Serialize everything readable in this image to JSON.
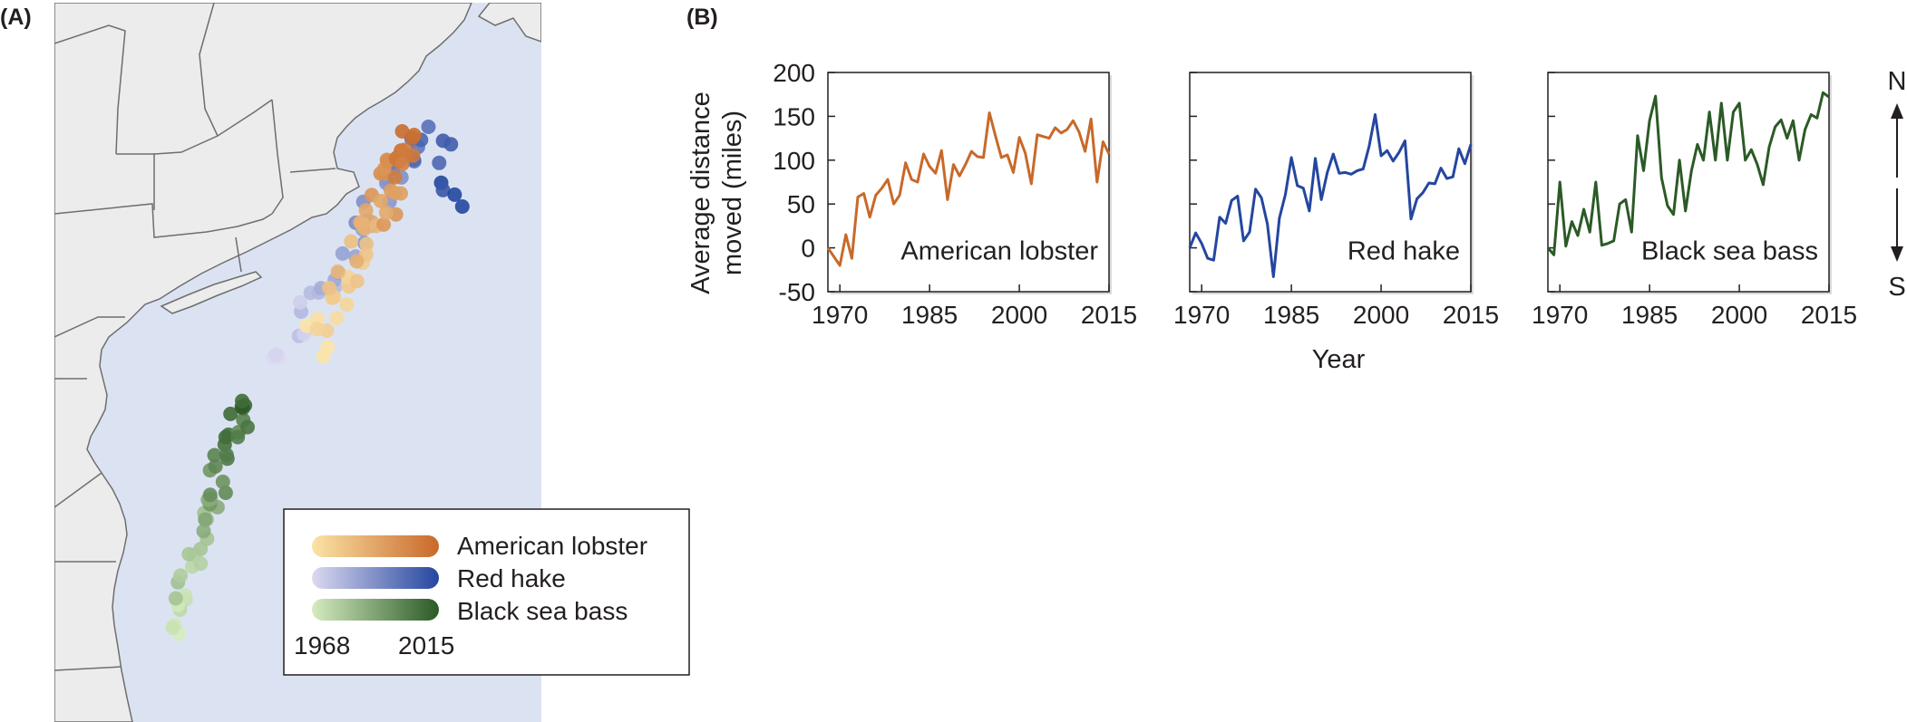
{
  "panel_a": {
    "label": "(A)",
    "legend": {
      "items": [
        {
          "name": "American lobster",
          "from": "#fbe3a6",
          "to": "#c8692a"
        },
        {
          "name": "Red hake",
          "from": "#dcd9f0",
          "to": "#2446a0"
        },
        {
          "name": "Black sea bass",
          "from": "#d4ecbf",
          "to": "#2b5a26"
        }
      ],
      "year_start": "1968",
      "year_end": "2015"
    },
    "colors": {
      "ocean": "#dbe3f3",
      "land": "#ececec",
      "border": "#6e6e6e"
    }
  },
  "panel_b": {
    "label": "(B)",
    "ylabel_line1": "Average distance",
    "ylabel_line2": "moved (miles)",
    "xlabel": "Year",
    "compass_n": "N",
    "compass_s": "S"
  },
  "chart_data": [
    {
      "type": "line",
      "title": "American lobster",
      "color": "#c8692a",
      "xlim": [
        1968,
        2015
      ],
      "ylim": [
        -50,
        200
      ],
      "xticks": [
        1970,
        1985,
        2000,
        2015
      ],
      "yticks": [
        -50,
        0,
        50,
        100,
        150,
        200
      ],
      "x": [
        1968,
        1969,
        1970,
        1971,
        1972,
        1973,
        1974,
        1975,
        1976,
        1977,
        1978,
        1979,
        1980,
        1981,
        1982,
        1983,
        1984,
        1985,
        1986,
        1987,
        1988,
        1989,
        1990,
        1991,
        1992,
        1993,
        1994,
        1995,
        1996,
        1997,
        1998,
        1999,
        2000,
        2001,
        2002,
        2003,
        2004,
        2005,
        2006,
        2007,
        2008,
        2009,
        2010,
        2011,
        2012,
        2013,
        2014,
        2015
      ],
      "y": [
        0,
        -10,
        -20,
        15,
        -12,
        58,
        62,
        35,
        60,
        68,
        78,
        50,
        60,
        97,
        78,
        75,
        107,
        93,
        85,
        111,
        55,
        95,
        82,
        95,
        110,
        104,
        103,
        154,
        128,
        103,
        106,
        86,
        126,
        108,
        73,
        129,
        127,
        125,
        137,
        131,
        135,
        145,
        132,
        110,
        147,
        75,
        121,
        107
      ]
    },
    {
      "type": "line",
      "title": "Red hake",
      "color": "#2446a0",
      "xlim": [
        1968,
        2015
      ],
      "ylim": [
        -50,
        200
      ],
      "xticks": [
        1970,
        1985,
        2000,
        2015
      ],
      "yticks": [
        -50,
        0,
        50,
        100,
        150,
        200
      ],
      "x": [
        1968,
        1969,
        1970,
        1971,
        1972,
        1973,
        1974,
        1975,
        1976,
        1977,
        1978,
        1979,
        1980,
        1981,
        1982,
        1983,
        1984,
        1985,
        1986,
        1987,
        1988,
        1989,
        1990,
        1991,
        1992,
        1993,
        1994,
        1995,
        1996,
        1997,
        1998,
        1999,
        2000,
        2001,
        2002,
        2003,
        2004,
        2005,
        2006,
        2007,
        2008,
        2009,
        2010,
        2011,
        2012,
        2013,
        2014,
        2015
      ],
      "y": [
        0,
        17,
        5,
        -12,
        -14,
        35,
        28,
        54,
        59,
        8,
        18,
        67,
        57,
        27,
        -33,
        34,
        61,
        103,
        71,
        68,
        42,
        102,
        55,
        86,
        107,
        85,
        86,
        84,
        88,
        90,
        116,
        152,
        105,
        111,
        99,
        109,
        122,
        33,
        56,
        63,
        74,
        73,
        91,
        79,
        81,
        113,
        96,
        118
      ]
    },
    {
      "type": "line",
      "title": "Black sea bass",
      "color": "#2b5a26",
      "xlim": [
        1968,
        2015
      ],
      "ylim": [
        -50,
        200
      ],
      "xticks": [
        1970,
        1985,
        2000,
        2015
      ],
      "yticks": [
        -50,
        0,
        50,
        100,
        150,
        200
      ],
      "x": [
        1968,
        1969,
        1970,
        1971,
        1972,
        1973,
        1974,
        1975,
        1976,
        1977,
        1978,
        1979,
        1980,
        1981,
        1982,
        1983,
        1984,
        1985,
        1986,
        1987,
        1988,
        1989,
        1990,
        1991,
        1992,
        1993,
        1994,
        1995,
        1996,
        1997,
        1998,
        1999,
        2000,
        2001,
        2002,
        2003,
        2004,
        2005,
        2006,
        2007,
        2008,
        2009,
        2010,
        2011,
        2012,
        2013,
        2014,
        2015
      ],
      "y": [
        0,
        -8,
        75,
        2,
        30,
        14,
        44,
        18,
        75,
        3,
        5,
        8,
        50,
        55,
        18,
        128,
        88,
        145,
        173,
        80,
        48,
        38,
        100,
        42,
        88,
        118,
        100,
        155,
        100,
        165,
        100,
        155,
        165,
        100,
        112,
        95,
        72,
        115,
        138,
        146,
        125,
        145,
        100,
        135,
        152,
        148,
        177,
        172
      ]
    }
  ]
}
